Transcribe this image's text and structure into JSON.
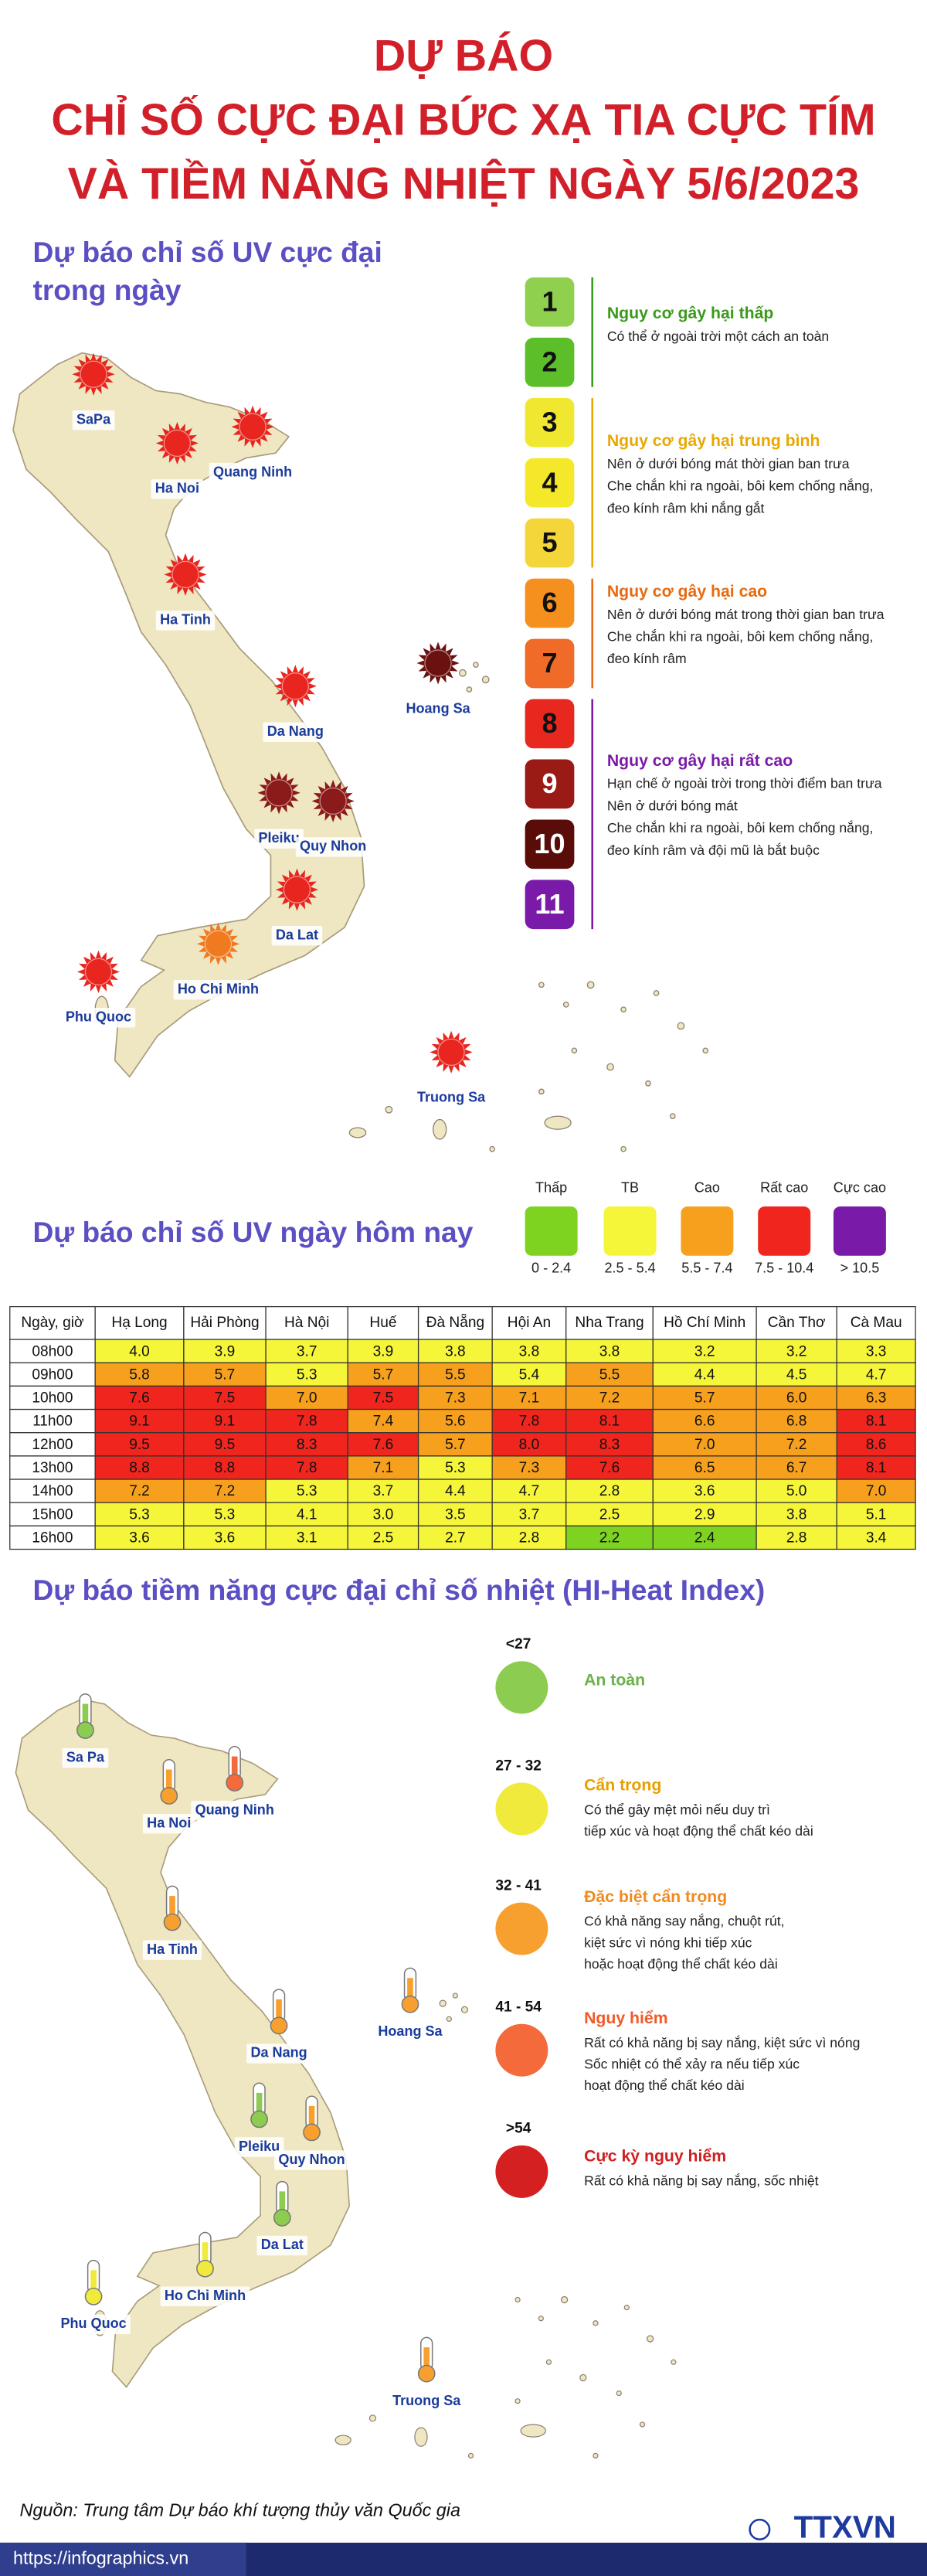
{
  "header": {
    "title": [
      "DỰ BÁO",
      "CHỈ SỐ CỰC ĐẠI BỨC XẠ TIA CỰC TÍM",
      "VÀ TIỀM NĂNG NHIỆT NGÀY 5/6/2023"
    ]
  },
  "uv_max": {
    "title": [
      "Dự báo chỉ số UV cực đại",
      "trong ngày"
    ],
    "locations": [
      {
        "name": "SaPa",
        "color": "#e8251e"
      },
      {
        "name": "Ha Noi",
        "color": "#e8251e"
      },
      {
        "name": "Quang Ninh",
        "color": "#e8251e"
      },
      {
        "name": "Ha Tinh",
        "color": "#e8251e"
      },
      {
        "name": "Hoang Sa",
        "color": "#6b1210"
      },
      {
        "name": "Da Nang",
        "color": "#e8251e"
      },
      {
        "name": "Pleiku",
        "color": "#8b1a1a"
      },
      {
        "name": "Quy Nhon",
        "color": "#8b1a1a"
      },
      {
        "name": "Da Lat",
        "color": "#e8251e"
      },
      {
        "name": "Ho Chi Minh",
        "color": "#f07a20"
      },
      {
        "name": "Phu Quoc",
        "color": "#e8251e"
      },
      {
        "name": "Truong Sa",
        "color": "#e8251e"
      }
    ],
    "groups": [
      {
        "title": "Nguy cơ gây hại thấp",
        "color": "#3a9a1a",
        "description": [
          "Có thể ở ngoài trời một cách an toàn"
        ],
        "levels": [
          {
            "label": "1",
            "color": "#8fd14f"
          },
          {
            "label": "2",
            "color": "#5cbf2a"
          }
        ]
      },
      {
        "title": "Nguy cơ gây hại trung bình",
        "color": "#e8a800",
        "description": [
          "Nên ở dưới bóng mát thời gian ban trưa",
          "Che chắn khi ra ngoài, bôi kem chống nắng,",
          "đeo kính râm khi nắng gắt"
        ],
        "levels": [
          {
            "label": "3",
            "color": "#f0e830"
          },
          {
            "label": "4",
            "color": "#f5e82a"
          },
          {
            "label": "5",
            "color": "#f5d63a"
          }
        ]
      },
      {
        "title": "Nguy cơ gây hại cao",
        "color": "#e86a10",
        "description": [
          "Nên ở dưới bóng mát trong thời gian ban trưa",
          "Che chắn khi ra ngoài, bôi kem chống nắng,",
          "đeo kính râm"
        ],
        "levels": [
          {
            "label": "6",
            "color": "#f5901e"
          },
          {
            "label": "7",
            "color": "#f06a28"
          }
        ]
      },
      {
        "title": "Nguy cơ gây hại rất cao",
        "color": "#7a1aa8",
        "description": [
          "Hạn chế ở ngoài trời trong thời điểm ban trưa",
          "Nên ở dưới bóng mát",
          "Che chắn khi ra ngoài, bôi kem chống nắng,",
          "đeo kính râm và đội mũ là bắt buộc"
        ],
        "levels": [
          {
            "label": "8",
            "color": "#e8281e"
          },
          {
            "label": "9",
            "color": "#9a1a16"
          },
          {
            "label": "10",
            "color": "#5a0c08"
          },
          {
            "label": "11",
            "color": "#7a1aa8"
          }
        ]
      }
    ]
  },
  "uv_today": {
    "title": "Dự báo chỉ số UV ngày hôm nay",
    "legend": [
      {
        "name": "Thấp",
        "range": "0 - 2.4",
        "color": "#7ed321"
      },
      {
        "name": "TB",
        "range": "2.5 - 5.4",
        "color": "#f5f53a"
      },
      {
        "name": "Cao",
        "range": "5.5 - 7.4",
        "color": "#f7a01e"
      },
      {
        "name": "Rất cao",
        "range": "7.5 - 10.4",
        "color": "#f0251e"
      },
      {
        "name": "Cực cao",
        "range": "> 10.5",
        "color": "#7a1aa8"
      }
    ],
    "table": {
      "header": [
        "Ngày, giờ",
        "Hạ Long",
        "Hải Phòng",
        "Hà Nội",
        "Huế",
        "Đà Nẵng",
        "Hội An",
        "Nha Trang",
        "Hồ Chí Minh",
        "Cần Thơ",
        "Cà Mau"
      ],
      "rows": [
        [
          "08h00",
          "4.0",
          "3.9",
          "3.7",
          "3.9",
          "3.8",
          "3.8",
          "3.8",
          "3.2",
          "3.2",
          "3.3"
        ],
        [
          "09h00",
          "5.8",
          "5.7",
          "5.3",
          "5.7",
          "5.5",
          "5.4",
          "5.5",
          "4.4",
          "4.5",
          "4.7"
        ],
        [
          "10h00",
          "7.6",
          "7.5",
          "7.0",
          "7.5",
          "7.3",
          "7.1",
          "7.2",
          "5.7",
          "6.0",
          "6.3"
        ],
        [
          "11h00",
          "9.1",
          "9.1",
          "7.8",
          "7.4",
          "5.6",
          "7.8",
          "8.1",
          "6.6",
          "6.8",
          "8.1"
        ],
        [
          "12h00",
          "9.5",
          "9.5",
          "8.3",
          "7.6",
          "5.7",
          "8.0",
          "8.3",
          "7.0",
          "7.2",
          "8.6"
        ],
        [
          "13h00",
          "8.8",
          "8.8",
          "7.8",
          "7.1",
          "5.3",
          "7.3",
          "7.6",
          "6.5",
          "6.7",
          "8.1"
        ],
        [
          "14h00",
          "7.2",
          "7.2",
          "5.3",
          "3.7",
          "4.4",
          "4.7",
          "2.8",
          "3.6",
          "5.0",
          "7.0"
        ],
        [
          "15h00",
          "5.3",
          "5.3",
          "4.1",
          "3.0",
          "3.5",
          "3.7",
          "2.5",
          "2.9",
          "3.8",
          "5.1"
        ],
        [
          "16h00",
          "3.6",
          "3.6",
          "3.1",
          "2.5",
          "2.7",
          "2.8",
          "2.2",
          "2.4",
          "2.8",
          "3.4"
        ]
      ]
    }
  },
  "heat_index": {
    "title": "Dự báo tiềm năng cực đại chỉ số nhiệt (HI-Heat Index)",
    "levels": [
      {
        "range": "<27",
        "name": "An toàn",
        "color": "#8ccc50",
        "title_color": "#6ab04c"
      },
      {
        "range": "27 - 32",
        "name": "Cẩn trọng",
        "color": "#f0ea3c",
        "title_color": "#e8a000",
        "description": [
          "Có thể gây mệt mỏi nếu duy trì",
          "tiếp xúc và hoạt động thể chất kéo dài"
        ]
      },
      {
        "range": "32 - 41",
        "name": "Đặc biệt cẩn trọng",
        "color": "#f7a030",
        "title_color": "#f08a1e",
        "description": [
          "Có khả năng say nắng, chuột rút,",
          "kiệt sức vì nóng khi tiếp xúc",
          "hoặc hoạt động thể chất kéo dài"
        ]
      },
      {
        "range": "41 - 54",
        "name": "Nguy hiểm",
        "color": "#f56a3a",
        "title_color": "#f05a28",
        "description": [
          "Rất có khả năng bị say nắng, kiệt sức vì nóng",
          "Sốc nhiệt có thể xảy ra nếu tiếp xúc",
          "hoạt động thể chất kéo dài"
        ]
      },
      {
        "range": ">54",
        "name": "Cực kỳ nguy hiểm",
        "color": "#d42020",
        "title_color": "#d01f1f",
        "description": [
          "Rất có khả năng bị say nắng, sốc nhiệt"
        ]
      }
    ],
    "locations": [
      {
        "name": "Sa Pa",
        "color": "#8ccc50"
      },
      {
        "name": "Ha Noi",
        "color": "#f7a030"
      },
      {
        "name": "Quang Ninh",
        "color": "#f56a3a"
      },
      {
        "name": "Ha Tinh",
        "color": "#f7a030"
      },
      {
        "name": "Hoang Sa",
        "color": "#f7a030"
      },
      {
        "name": "Da Nang",
        "color": "#f7a030"
      },
      {
        "name": "Pleiku",
        "color": "#8ccc50"
      },
      {
        "name": "Quy Nhon",
        "color": "#f7a030"
      },
      {
        "name": "Da Lat",
        "color": "#8ccc50"
      },
      {
        "name": "Ho Chi Minh",
        "color": "#f0ea3c"
      },
      {
        "name": "Phu Quoc",
        "color": "#f0ea3c"
      },
      {
        "name": "Truong Sa",
        "color": "#f7a030"
      }
    ]
  },
  "footer": {
    "source": "Nguồn: Trung tâm Dự báo khí tượng thủy văn Quốc gia",
    "website": "https://infographics.vn",
    "logo": "TTXVN"
  }
}
